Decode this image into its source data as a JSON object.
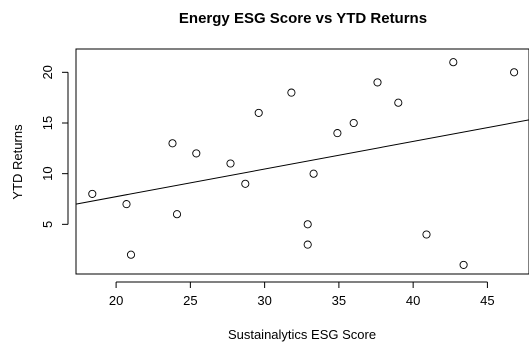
{
  "chart_data": {
    "type": "scatter",
    "title": "Energy ESG Score vs YTD Returns",
    "xlabel": "Sustainalytics ESG Score",
    "ylabel": "YTD Returns",
    "xlim": [
      17.3,
      47.8
    ],
    "ylim": [
      0.1,
      22.3
    ],
    "x_ticks": [
      20,
      25,
      30,
      35,
      40,
      45
    ],
    "y_ticks": [
      5,
      10,
      15,
      20
    ],
    "grid": false,
    "legend": "none",
    "points": [
      {
        "x": 18.4,
        "y": 8
      },
      {
        "x": 20.7,
        "y": 7
      },
      {
        "x": 21.0,
        "y": 2
      },
      {
        "x": 23.8,
        "y": 13
      },
      {
        "x": 24.1,
        "y": 6
      },
      {
        "x": 25.4,
        "y": 12
      },
      {
        "x": 27.7,
        "y": 11
      },
      {
        "x": 28.7,
        "y": 9
      },
      {
        "x": 29.6,
        "y": 16
      },
      {
        "x": 31.8,
        "y": 18
      },
      {
        "x": 32.9,
        "y": 5
      },
      {
        "x": 32.9,
        "y": 3
      },
      {
        "x": 33.3,
        "y": 10
      },
      {
        "x": 34.9,
        "y": 14
      },
      {
        "x": 36.0,
        "y": 15
      },
      {
        "x": 37.6,
        "y": 19
      },
      {
        "x": 39.0,
        "y": 17
      },
      {
        "x": 40.9,
        "y": 4
      },
      {
        "x": 42.7,
        "y": 21
      },
      {
        "x": 43.4,
        "y": 1
      },
      {
        "x": 46.8,
        "y": 20
      }
    ],
    "trend_line": {
      "x": [
        17.3,
        47.8
      ],
      "y": [
        7.0,
        15.3
      ]
    }
  }
}
